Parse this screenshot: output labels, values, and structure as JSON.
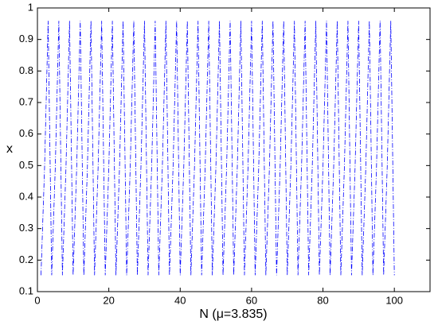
{
  "chart_data": {
    "type": "line",
    "x_label": "N  (μ=3.835)",
    "y_label": "x",
    "x": [
      1,
      2,
      3,
      4,
      5,
      6,
      7,
      8,
      9,
      10,
      11,
      12,
      13,
      14,
      15,
      16,
      17,
      18,
      19,
      20,
      21,
      22,
      23,
      24,
      25,
      26,
      27,
      28,
      29,
      30,
      31,
      32,
      33,
      34,
      35,
      36,
      37,
      38,
      39,
      40,
      41,
      42,
      43,
      44,
      45,
      46,
      47,
      48,
      49,
      50,
      51,
      52,
      53,
      54,
      55,
      56,
      57,
      58,
      59,
      60,
      61,
      62,
      63,
      64,
      65,
      66,
      67,
      68,
      69,
      70,
      71,
      72,
      73,
      74,
      75,
      76,
      77,
      78,
      79,
      80,
      81,
      82,
      83,
      84,
      85,
      86,
      87,
      88,
      89,
      90,
      91,
      92,
      93,
      94,
      95,
      96,
      97,
      98,
      99,
      100
    ],
    "series": [
      {
        "name": "x",
        "color": "#0000ff",
        "values": [
          0.152,
          0.494,
          0.959,
          0.152,
          0.494,
          0.959,
          0.152,
          0.494,
          0.959,
          0.152,
          0.494,
          0.959,
          0.152,
          0.494,
          0.959,
          0.152,
          0.494,
          0.959,
          0.152,
          0.494,
          0.959,
          0.152,
          0.494,
          0.959,
          0.152,
          0.494,
          0.959,
          0.152,
          0.494,
          0.959,
          0.152,
          0.494,
          0.959,
          0.152,
          0.494,
          0.959,
          0.152,
          0.494,
          0.959,
          0.152,
          0.494,
          0.959,
          0.152,
          0.494,
          0.959,
          0.152,
          0.494,
          0.959,
          0.152,
          0.494,
          0.959,
          0.152,
          0.494,
          0.959,
          0.152,
          0.494,
          0.959,
          0.152,
          0.494,
          0.959,
          0.152,
          0.494,
          0.959,
          0.152,
          0.494,
          0.959,
          0.152,
          0.494,
          0.959,
          0.152,
          0.494,
          0.959,
          0.152,
          0.494,
          0.959,
          0.152,
          0.494,
          0.959,
          0.152,
          0.494,
          0.959,
          0.152,
          0.494,
          0.959,
          0.152,
          0.494,
          0.959,
          0.152,
          0.494,
          0.959,
          0.152,
          0.494,
          0.959,
          0.152,
          0.494,
          0.959,
          0.152,
          0.494,
          0.959,
          0.152
        ]
      }
    ],
    "xlim": [
      0,
      110
    ],
    "xticks": [
      0,
      20,
      40,
      60,
      80,
      100
    ],
    "ylim": [
      0.1,
      1
    ],
    "yticks": [
      0.1,
      0.2,
      0.3,
      0.4,
      0.5,
      0.6,
      0.7,
      0.8,
      0.9,
      1
    ],
    "grid": false
  }
}
